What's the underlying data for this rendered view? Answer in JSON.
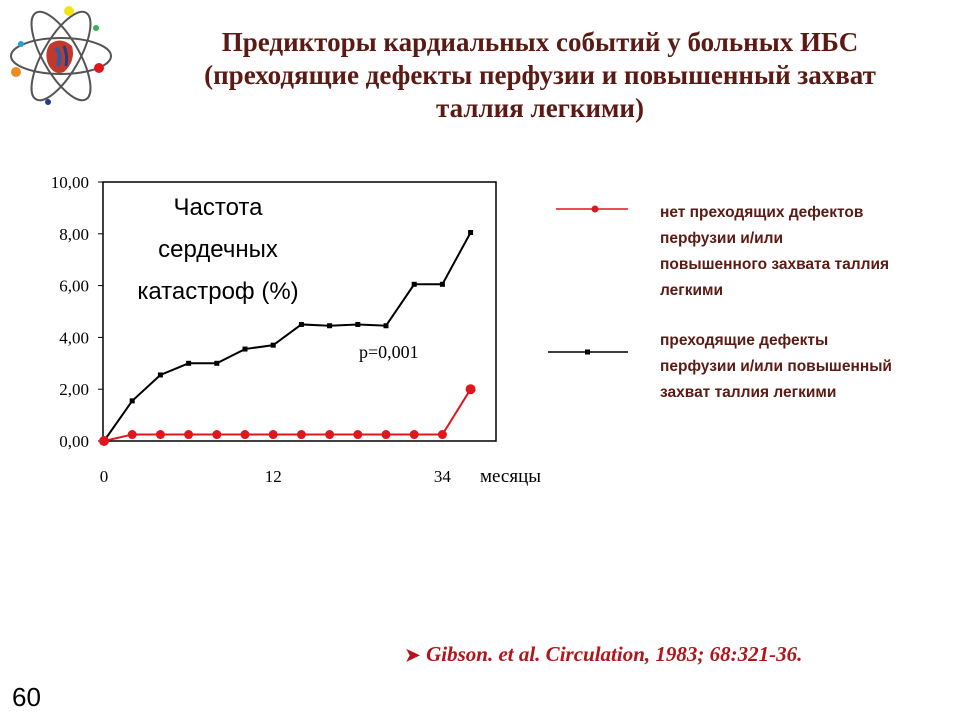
{
  "title_lines": [
    "Предикторы кардиальных событий у больных ИБС",
    "(преходящие дефекты перфузии и повышенный захват",
    "таллия легкими)"
  ],
  "chart_data": {
    "type": "line",
    "ylabel_lines": [
      "Частота",
      "сердечных",
      "катастроф (%)"
    ],
    "xlabel": "месяцы",
    "x_ticks": [
      "0",
      "12",
      "34"
    ],
    "y_ticks": [
      "0,00",
      "2,00",
      "4,00",
      "6,00",
      "8,00",
      "10,00"
    ],
    "ylim": [
      0,
      10
    ],
    "annotation": "p=0,001",
    "grid": false,
    "legend_placement": "right",
    "series": [
      {
        "name": "нет преходящих дефектов перфузии и/или повышенного захвата таллия легкими",
        "color": "#e0161d",
        "marker": "circle",
        "values": [
          0,
          0.25,
          0.25,
          0.25,
          0.25,
          0.25,
          0.25,
          0.25,
          0.25,
          0.25,
          0.25,
          0.25,
          0.25,
          2.0
        ]
      },
      {
        "name": "преходящие дефекты перфузии и/или повышенный захват таллия легкими",
        "color": "#000000",
        "marker": "square",
        "values": [
          0,
          1.55,
          2.55,
          3.0,
          3.0,
          3.55,
          3.7,
          4.5,
          4.45,
          4.5,
          4.45,
          6.05,
          6.05,
          8.05
        ]
      }
    ]
  },
  "legend": [
    {
      "lines": [
        "нет преходящих дефектов",
        "перфузии и/или",
        "повышенного захвата таллия",
        "легкими"
      ]
    },
    {
      "lines": [
        "преходящие дефекты",
        "перфузии и/или повышенный",
        "захват таллия легкими"
      ]
    }
  ],
  "citation": "Gibson. et al. Circulation, 1983; 68:321-36.",
  "slide_number": "60",
  "colors": {
    "title": "#5c1a14",
    "citation": "#b3141a",
    "red_series": "#e0161d"
  }
}
